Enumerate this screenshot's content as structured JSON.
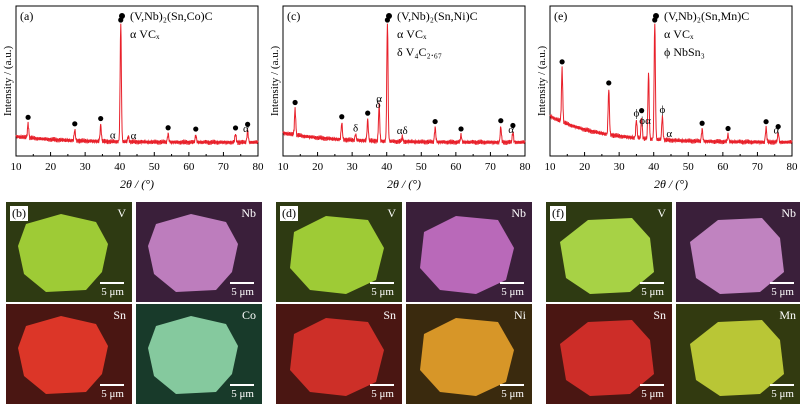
{
  "panels": [
    {
      "tag": "(a)",
      "legend": [
        "(V,Nb)₂(Sn,Co)C",
        "α VCₓ"
      ],
      "legend_icons": [
        "filled-circle-icon",
        "none"
      ],
      "xlabel": "2θ / (°)",
      "ylabel": "Intensity / (a.u.)",
      "xticks": [
        "10",
        "20",
        "30",
        "40",
        "50",
        "60",
        "70",
        "80"
      ],
      "peak_markers": [
        {
          "x": 13.5,
          "sym": "●"
        },
        {
          "x": 27,
          "sym": "●"
        },
        {
          "x": 34.5,
          "sym": "●"
        },
        {
          "x": 38,
          "sym": "α"
        },
        {
          "x": 40.3,
          "sym": "●"
        },
        {
          "x": 44,
          "sym": "α"
        },
        {
          "x": 54,
          "sym": "●"
        },
        {
          "x": 62,
          "sym": "●"
        },
        {
          "x": 73.5,
          "sym": "●"
        },
        {
          "x": 76.5,
          "sym": "α"
        },
        {
          "x": 77,
          "sym": "●"
        }
      ]
    },
    {
      "tag": "(c)",
      "legend": [
        "(V,Nb)₂(Sn,Ni)C",
        "α VCₓ",
        "δ V₄C₂.₆₇"
      ],
      "legend_icons": [
        "filled-circle-icon",
        "none",
        "none"
      ],
      "xlabel": "2θ / (°)",
      "ylabel": "Intensity / (a.u.)",
      "xticks": [
        "10",
        "20",
        "30",
        "40",
        "50",
        "60",
        "70",
        "80"
      ],
      "peak_markers": [
        {
          "x": 13.5,
          "sym": "●"
        },
        {
          "x": 27,
          "sym": "●"
        },
        {
          "x": 31,
          "sym": "δ"
        },
        {
          "x": 34.5,
          "sym": "●"
        },
        {
          "x": 37.5,
          "sym": "δ"
        },
        {
          "x": 37.8,
          "sym": "α"
        },
        {
          "x": 40.2,
          "sym": "●"
        },
        {
          "x": 44.5,
          "sym": "αδ"
        },
        {
          "x": 54,
          "sym": "●"
        },
        {
          "x": 61.5,
          "sym": "●"
        },
        {
          "x": 73,
          "sym": "●"
        },
        {
          "x": 76,
          "sym": "α"
        },
        {
          "x": 76.5,
          "sym": "●"
        }
      ]
    },
    {
      "tag": "(e)",
      "legend": [
        "(V,Nb)₂(Sn,Mn)C",
        "α VCₓ",
        "ϕ NbSn₃"
      ],
      "legend_icons": [
        "filled-circle-icon",
        "none",
        "none"
      ],
      "xlabel": "2θ / (°)",
      "ylabel": "Intensity / (a.u.)",
      "xticks": [
        "10",
        "20",
        "30",
        "40",
        "50",
        "60",
        "70",
        "80"
      ],
      "peak_markers": [
        {
          "x": 13.5,
          "sym": "●"
        },
        {
          "x": 27,
          "sym": "●"
        },
        {
          "x": 35,
          "sym": "ϕ"
        },
        {
          "x": 36.5,
          "sym": "●"
        },
        {
          "x": 37.5,
          "sym": "ϕα"
        },
        {
          "x": 40.3,
          "sym": "●"
        },
        {
          "x": 42.5,
          "sym": "ϕ"
        },
        {
          "x": 44.5,
          "sym": "α"
        },
        {
          "x": 54,
          "sym": "●"
        },
        {
          "x": 61.5,
          "sym": "●"
        },
        {
          "x": 72.5,
          "sym": "●"
        },
        {
          "x": 75.5,
          "sym": "α"
        },
        {
          "x": 76,
          "sym": "●"
        }
      ]
    }
  ],
  "chart_data": [
    {
      "type": "line",
      "xlim": [
        10,
        80
      ],
      "xlabel": "2θ / (°)",
      "ylabel": "Intensity / (a.u.)",
      "series_color": "#e8202a",
      "peaks": [
        [
          13.5,
          0.12
        ],
        [
          27,
          0.09
        ],
        [
          34.5,
          0.14
        ],
        [
          40.3,
          1.0
        ],
        [
          42.5,
          0.05
        ],
        [
          54,
          0.07
        ],
        [
          62,
          0.06
        ],
        [
          73.5,
          0.07
        ],
        [
          77,
          0.1
        ]
      ]
    },
    {
      "type": "line",
      "xlim": [
        10,
        80
      ],
      "xlabel": "2θ / (°)",
      "ylabel": "Intensity / (a.u.)",
      "series_color": "#e8202a",
      "peaks": [
        [
          13.5,
          0.22
        ],
        [
          27,
          0.14
        ],
        [
          31,
          0.05
        ],
        [
          34.5,
          0.18
        ],
        [
          37.8,
          0.3
        ],
        [
          40.2,
          1.0
        ],
        [
          44.5,
          0.04
        ],
        [
          54,
          0.12
        ],
        [
          61.5,
          0.06
        ],
        [
          73,
          0.13
        ],
        [
          76.5,
          0.09
        ]
      ]
    },
    {
      "type": "line",
      "xlim": [
        10,
        80
      ],
      "xlabel": "2θ / (°)",
      "ylabel": "Intensity / (a.u.)",
      "series_color": "#e8202a",
      "peaks": [
        [
          13.5,
          0.45
        ],
        [
          27,
          0.38
        ],
        [
          35,
          0.15
        ],
        [
          36.5,
          0.18
        ],
        [
          38.5,
          0.55
        ],
        [
          40.3,
          1.0
        ],
        [
          42.5,
          0.2
        ],
        [
          54,
          0.1
        ],
        [
          61.5,
          0.06
        ],
        [
          72.5,
          0.12
        ],
        [
          76,
          0.08
        ]
      ]
    }
  ],
  "map_groups": [
    {
      "tag": "(b)",
      "tiles": [
        {
          "el": "V",
          "scale": "5 μm",
          "bg": "#2e3a12",
          "fg": "#a8d83a"
        },
        {
          "el": "Nb",
          "scale": "5 μm",
          "bg": "#3a1f3a",
          "fg": "#c986c9"
        },
        {
          "el": "Sn",
          "scale": "5 μm",
          "bg": "#4a1612",
          "fg": "#e83a2a"
        },
        {
          "el": "Co",
          "scale": "5 μm",
          "bg": "#183a2a",
          "fg": "#8fd6a8"
        }
      ]
    },
    {
      "tag": "(d)",
      "tiles": [
        {
          "el": "V",
          "scale": "5 μm",
          "bg": "#2e3a12",
          "fg": "#a8d83a"
        },
        {
          "el": "Nb",
          "scale": "5 μm",
          "bg": "#3a1f3a",
          "fg": "#c470c4"
        },
        {
          "el": "Sn",
          "scale": "5 μm",
          "bg": "#4a1612",
          "fg": "#d8322a"
        },
        {
          "el": "Ni",
          "scale": "5 μm",
          "bg": "#3a2a0e",
          "fg": "#e5a02a"
        }
      ]
    },
    {
      "tag": "(f)",
      "tiles": [
        {
          "el": "V",
          "scale": "5 μm",
          "bg": "#2e3a12",
          "fg": "#b2e04a"
        },
        {
          "el": "Nb",
          "scale": "5 μm",
          "bg": "#3a1f3a",
          "fg": "#cc8ccc"
        },
        {
          "el": "Sn",
          "scale": "5 μm",
          "bg": "#4a1612",
          "fg": "#d8302a"
        },
        {
          "el": "Mn",
          "scale": "5 μm",
          "bg": "#323a10",
          "fg": "#c4d23a"
        }
      ]
    }
  ]
}
